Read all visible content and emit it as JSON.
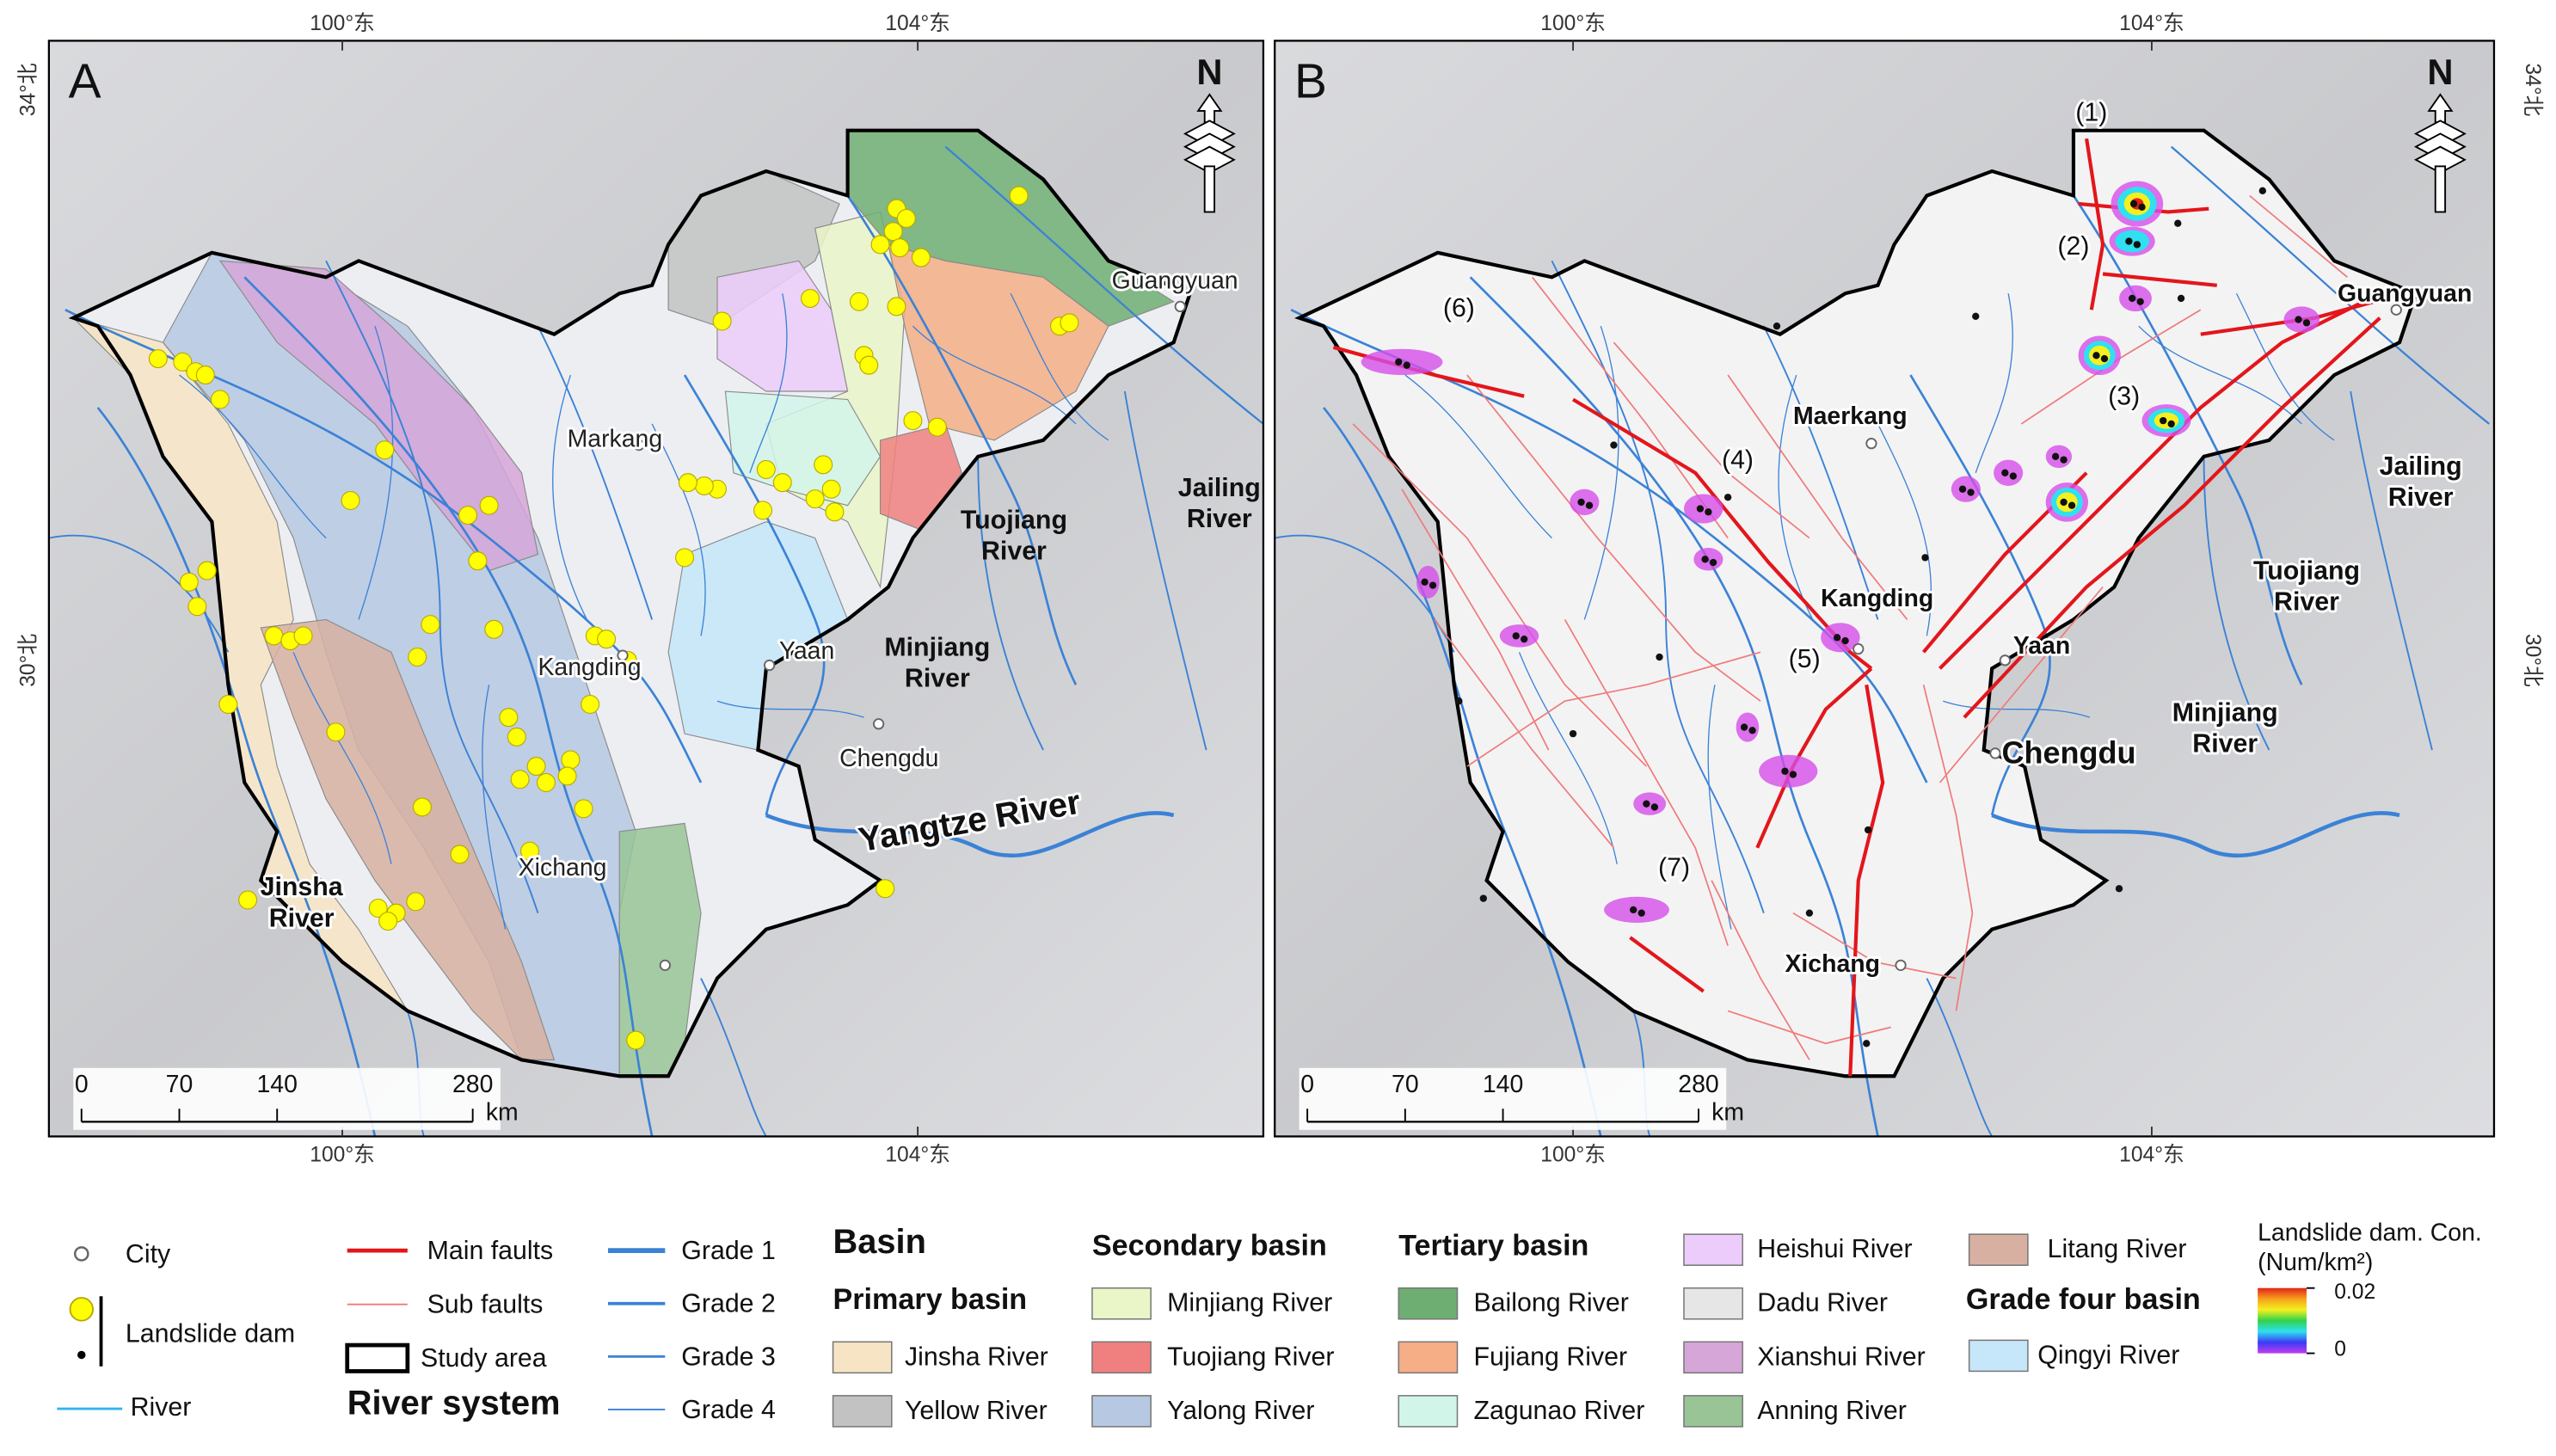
{
  "panels": [
    {
      "label": "A",
      "cities": [
        "Markang",
        "Kangding",
        "Xichang",
        "Yaan",
        "Chengdu",
        "Guangyuan"
      ],
      "rivers": [
        [
          "Jinsha",
          "River"
        ],
        [
          "Tuojiang",
          "River"
        ],
        [
          "Minjiang",
          "River"
        ],
        [
          "Jailing",
          "River"
        ]
      ],
      "main_river": "Yangtze River"
    },
    {
      "label": "B",
      "cities": [
        "Maerkang",
        "Kangding",
        "Yaan",
        "Chengdu",
        "Xichang",
        "Guangyuan"
      ],
      "rivers": [
        [
          "Jailing",
          "River"
        ],
        [
          "Tuojiang",
          "River"
        ],
        [
          "Minjiang",
          "River"
        ]
      ],
      "clusters": [
        "(1)",
        "(2)",
        "(3)",
        "(4)",
        "(5)",
        "(6)",
        "(7)"
      ]
    }
  ],
  "graticule": {
    "lon": [
      "100°东",
      "104°东"
    ],
    "lat": [
      "34°北",
      "30°北"
    ],
    "north": "N"
  },
  "scale_bar": {
    "ticks": [
      0,
      70,
      140,
      280
    ],
    "unit": "km"
  },
  "legend": {
    "symbols": [
      "City",
      "Landslide dam",
      "River"
    ],
    "lines": [
      {
        "label": "Main faults",
        "color": "#e3161b"
      },
      {
        "label": "Sub faults",
        "color": "#f07a7a"
      },
      {
        "label": "Study area",
        "color": "#000000"
      }
    ],
    "river_system": {
      "title": "River system",
      "grades": [
        "Grade 1",
        "Grade 2",
        "Grade 3",
        "Grade 4"
      ],
      "color": "#3b82d6"
    },
    "basin": {
      "title": "Basin",
      "primary": {
        "title": "Primary basin",
        "items": [
          {
            "label": "Jinsha River",
            "color": "#f7e4c4"
          },
          {
            "label": "Yellow River",
            "color": "#c2c2c2"
          }
        ]
      },
      "secondary": {
        "title": "Secondary basin",
        "items": [
          {
            "label": "Minjiang River",
            "color": "#eaf5c8"
          },
          {
            "label": "Tuojiang River",
            "color": "#f08080"
          },
          {
            "label": "Yalong River",
            "color": "#b6c8e2"
          }
        ]
      },
      "tertiary": {
        "title": "Tertiary basin",
        "items": [
          {
            "label": "Bailong River",
            "color": "#6fae72"
          },
          {
            "label": "Fujiang River",
            "color": "#f5ae86"
          },
          {
            "label": "Zagunao River",
            "color": "#d2f5ea"
          },
          {
            "label": "Heishui River",
            "color": "#ecccfa"
          },
          {
            "label": "Dadu River",
            "color": "#e6e6e6"
          },
          {
            "label": "Xianshui River",
            "color": "#d6a6d8"
          },
          {
            "label": "Anning River",
            "color": "#98c496"
          },
          {
            "label": "Litang River",
            "color": "#d8b0a2"
          }
        ]
      },
      "grade_four": {
        "title": "Grade four basin",
        "items": [
          {
            "label": "Qingyi River",
            "color": "#c6e6fa"
          }
        ]
      }
    },
    "concentration": {
      "title": "Landslide dam. Con.",
      "unit": "(Num/km²)",
      "ticks": [
        0.02,
        0
      ],
      "colors": [
        "#e2231a",
        "#f7a21b",
        "#f4f020",
        "#31d24c",
        "#2fe0f0",
        "#3b3bf5",
        "#c03cf0"
      ]
    }
  }
}
